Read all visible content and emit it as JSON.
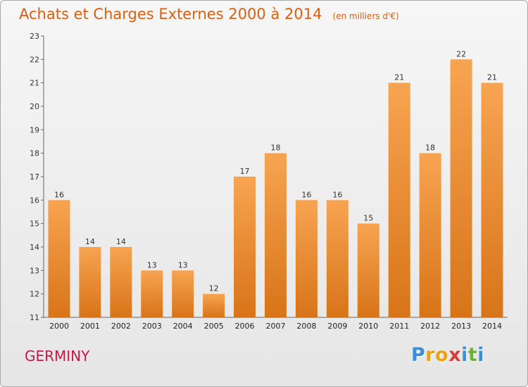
{
  "chart_data": {
    "type": "bar",
    "title": "Achats et Charges Externes 2000 à 2014",
    "subtitle": "(en milliers d'€)",
    "categories": [
      "2000",
      "2001",
      "2002",
      "2003",
      "2004",
      "2005",
      "2006",
      "2007",
      "2008",
      "2009",
      "2010",
      "2011",
      "2012",
      "2013",
      "2014"
    ],
    "values": [
      16,
      14,
      14,
      13,
      13,
      12,
      17,
      18,
      16,
      16,
      15,
      21,
      18,
      22,
      21
    ],
    "ylim": [
      11,
      23
    ],
    "yticks": [
      11,
      12,
      13,
      14,
      15,
      16,
      17,
      18,
      19,
      20,
      21,
      22,
      23
    ],
    "grid": false,
    "legend": "none",
    "colors": {
      "bar_top": "#f7a452",
      "bar_bottom": "#d87418",
      "text": "#d95f13"
    }
  },
  "commune": "GERMINY",
  "logo": {
    "text": "Proxiti",
    "letters": [
      {
        "ch": "P",
        "color": "#3a8fd6"
      },
      {
        "ch": "r",
        "color": "#e7a21a"
      },
      {
        "ch": "o",
        "color": "#e7a21a"
      },
      {
        "ch": "x",
        "color": "#d93a3a"
      },
      {
        "ch": "i",
        "color": "#3a8fd6"
      },
      {
        "ch": "t",
        "color": "#6fb03a"
      },
      {
        "ch": "i",
        "color": "#3a8fd6"
      }
    ]
  }
}
